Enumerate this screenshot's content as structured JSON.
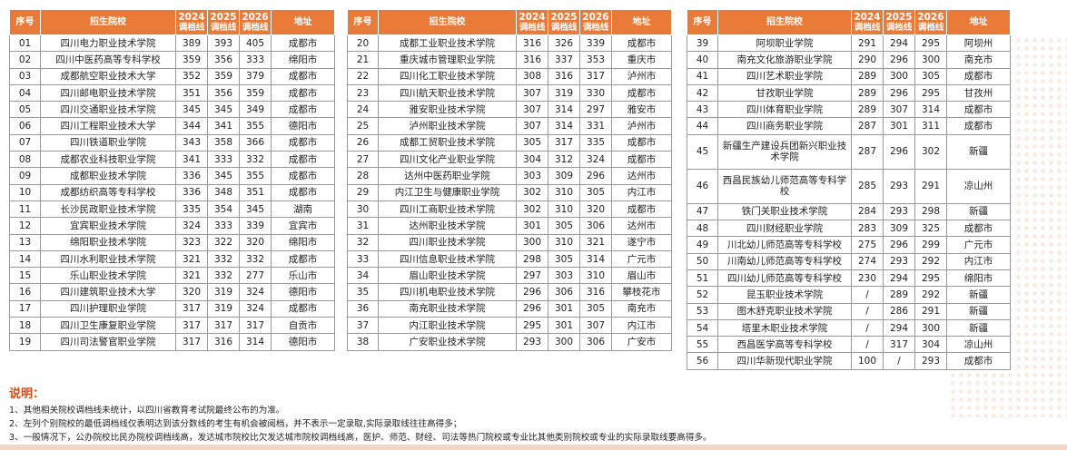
{
  "headers": {
    "no": "序号",
    "school": "招生院校",
    "y2024": "2024",
    "y2025": "2025",
    "y2026": "2026",
    "line": "调档线",
    "addr": "地址"
  },
  "tables": [
    [
      [
        "01",
        "四川电力职业技术学院",
        "389",
        "393",
        "405",
        "成都市"
      ],
      [
        "02",
        "四川中医药高等专科学校",
        "359",
        "356",
        "333",
        "绵阳市"
      ],
      [
        "03",
        "成都航空职业技术大学",
        "352",
        "359",
        "379",
        "成都市"
      ],
      [
        "04",
        "四川邮电职业技术学院",
        "351",
        "356",
        "359",
        "成都市"
      ],
      [
        "05",
        "四川交通职业技术学院",
        "345",
        "345",
        "349",
        "成都市"
      ],
      [
        "06",
        "四川工程职业技术大学",
        "344",
        "341",
        "355",
        "德阳市"
      ],
      [
        "07",
        "四川铁道职业学院",
        "343",
        "358",
        "366",
        "成都市"
      ],
      [
        "08",
        "成都农业科技职业学院",
        "341",
        "333",
        "332",
        "成都市"
      ],
      [
        "09",
        "成都职业技术学院",
        "336",
        "345",
        "355",
        "成都市"
      ],
      [
        "10",
        "成都纺织高等专科学校",
        "336",
        "348",
        "351",
        "成都市"
      ],
      [
        "11",
        "长沙民政职业技术学院",
        "335",
        "354",
        "345",
        "湖南"
      ],
      [
        "12",
        "宜宾职业技术学院",
        "324",
        "333",
        "339",
        "宜宾市"
      ],
      [
        "13",
        "绵阳职业技术学院",
        "323",
        "322",
        "320",
        "绵阳市"
      ],
      [
        "14",
        "四川水利职业技术学院",
        "321",
        "332",
        "332",
        "成都市"
      ],
      [
        "15",
        "乐山职业技术学院",
        "321",
        "332",
        "277",
        "乐山市"
      ],
      [
        "16",
        "四川建筑职业技术大学",
        "320",
        "319",
        "324",
        "德阳市"
      ],
      [
        "17",
        "四川护理职业学院",
        "317",
        "319",
        "324",
        "成都市"
      ],
      [
        "18",
        "四川卫生康复职业学院",
        "317",
        "317",
        "317",
        "自贡市"
      ],
      [
        "19",
        "四川司法警官职业学院",
        "317",
        "316",
        "314",
        "德阳市"
      ]
    ],
    [
      [
        "20",
        "成都工业职业技术学院",
        "316",
        "326",
        "339",
        "成都市"
      ],
      [
        "21",
        "重庆城市管理职业学院",
        "316",
        "337",
        "353",
        "重庆市"
      ],
      [
        "22",
        "四川化工职业技术学院",
        "308",
        "316",
        "317",
        "泸州市"
      ],
      [
        "23",
        "四川航天职业技术学院",
        "307",
        "319",
        "330",
        "成都市"
      ],
      [
        "24",
        "雅安职业技术学院",
        "307",
        "314",
        "297",
        "雅安市"
      ],
      [
        "25",
        "泸州职业技术学院",
        "307",
        "314",
        "331",
        "泸州市"
      ],
      [
        "26",
        "成都工贸职业技术学院",
        "305",
        "317",
        "335",
        "成都市"
      ],
      [
        "27",
        "四川文化产业职业学院",
        "304",
        "312",
        "324",
        "成都市"
      ],
      [
        "28",
        "达州中医药职业学院",
        "303",
        "309",
        "296",
        "达州市"
      ],
      [
        "29",
        "内江卫生与健康职业学院",
        "302",
        "310",
        "305",
        "内江市"
      ],
      [
        "30",
        "四川工商职业技术学院",
        "302",
        "310",
        "320",
        "成都市"
      ],
      [
        "31",
        "达州职业技术学院",
        "301",
        "305",
        "306",
        "达州市"
      ],
      [
        "32",
        "四川职业技术学院",
        "300",
        "310",
        "321",
        "遂宁市"
      ],
      [
        "33",
        "四川信息职业技术学院",
        "298",
        "305",
        "314",
        "广元市"
      ],
      [
        "34",
        "眉山职业技术学院",
        "297",
        "303",
        "310",
        "眉山市"
      ],
      [
        "35",
        "四川机电职业技术学院",
        "296",
        "306",
        "316",
        "攀枝花市"
      ],
      [
        "36",
        "南充职业技术学院",
        "296",
        "301",
        "305",
        "南充市"
      ],
      [
        "37",
        "内江职业技术学院",
        "295",
        "301",
        "307",
        "内江市"
      ],
      [
        "38",
        "广安职业技术学院",
        "293",
        "300",
        "306",
        "广安市"
      ]
    ],
    [
      [
        "39",
        "阿坝职业学院",
        "291",
        "294",
        "295",
        "阿坝州"
      ],
      [
        "40",
        "南充文化旅游职业学院",
        "290",
        "296",
        "300",
        "南充市"
      ],
      [
        "41",
        "四川艺术职业学院",
        "289",
        "300",
        "305",
        "成都市"
      ],
      [
        "42",
        "甘孜职业学院",
        "289",
        "296",
        "295",
        "甘孜州"
      ],
      [
        "43",
        "四川体育职业学院",
        "289",
        "307",
        "314",
        "成都市"
      ],
      [
        "44",
        "四川商务职业学院",
        "287",
        "301",
        "311",
        "成都市"
      ],
      [
        "45",
        "新疆生产建设兵团新兴职业技术学院",
        "287",
        "296",
        "302",
        "新疆"
      ],
      [
        "46",
        "西昌民族幼儿师范高等专科学校",
        "285",
        "293",
        "291",
        "凉山州"
      ],
      [
        "47",
        "铁门关职业技术学院",
        "284",
        "293",
        "298",
        "新疆"
      ],
      [
        "48",
        "四川财经职业学院",
        "283",
        "309",
        "325",
        "成都市"
      ],
      [
        "49",
        "川北幼儿师范高等专科学校",
        "275",
        "296",
        "299",
        "广元市"
      ],
      [
        "50",
        "川南幼儿师范高等专科学校",
        "274",
        "293",
        "292",
        "内江市"
      ],
      [
        "51",
        "四川幼儿师范高等专科学校",
        "230",
        "294",
        "295",
        "绵阳市"
      ],
      [
        "52",
        "昆玉职业技术学院",
        "/",
        "289",
        "292",
        "新疆"
      ],
      [
        "53",
        "图木舒克职业技术学院",
        "/",
        "286",
        "291",
        "新疆"
      ],
      [
        "54",
        "塔里木职业技术学院",
        "/",
        "294",
        "300",
        "新疆"
      ],
      [
        "55",
        "西昌医学高等专科学校",
        "/",
        "317",
        "304",
        "凉山州"
      ],
      [
        "56",
        "四川华新现代职业学院",
        "100",
        "/",
        "293",
        "成都市"
      ]
    ]
  ],
  "notes": {
    "title": "说明：",
    "lines": [
      "1、其他相关院校调档线未统计，以四川省教育考试院最终公布的为准。",
      "2、左列个别院校的最低调档线仅表明达到该分数线的考生有机会被阅档，并不表示一定录取,实际录取线往往高得多；",
      "3、一般情况下，公办院校比民办院校调档线高，发达城市院校比欠发达城市院校调档线高，医护、师范、财经、司法等热门院校或专业比其他类别院校或专业的实际录取线要高得多。"
    ]
  }
}
